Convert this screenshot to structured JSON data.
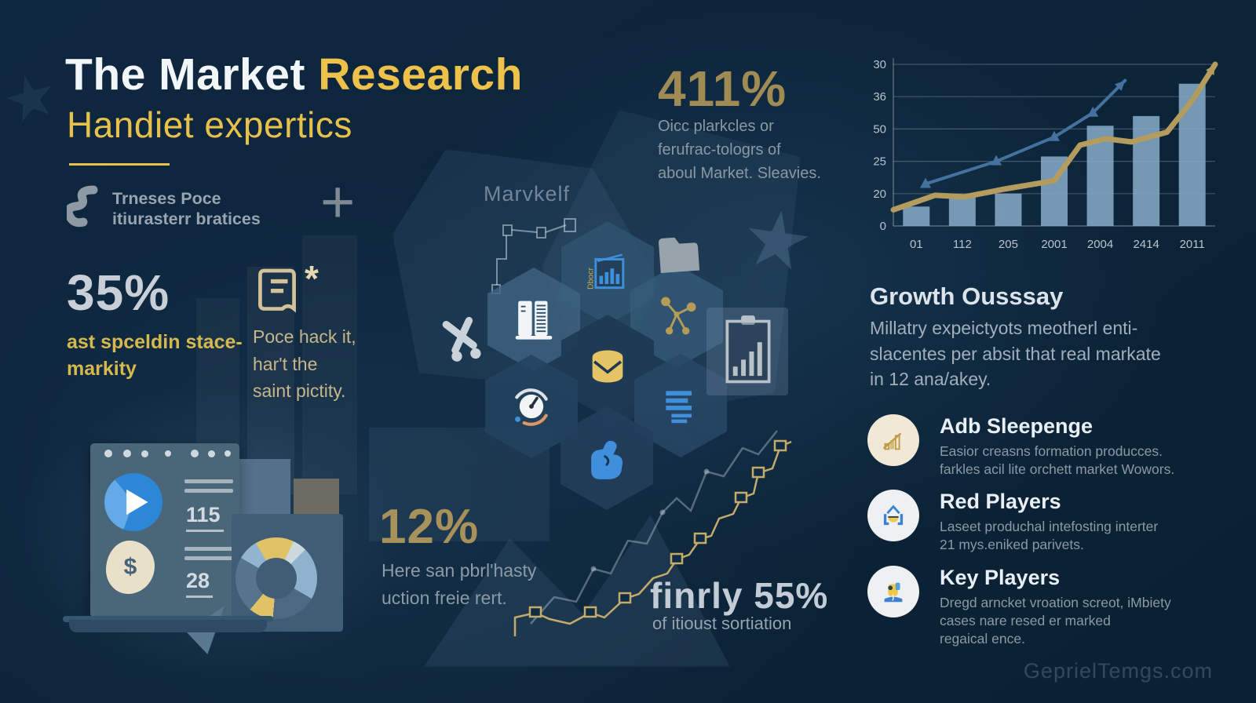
{
  "header": {
    "title_part1": "The Market",
    "title_part2": "Research",
    "subtitle": "Handiet expertics",
    "tagline": [
      "Trneses Poce",
      "itiurasterr bratices"
    ],
    "plus_glyph": "+"
  },
  "center": {
    "label": "Marvkelf",
    "doc_label": "Dbocr"
  },
  "stat_35": {
    "value": "35%",
    "label": [
      "ast spceldin stace-",
      "markity"
    ]
  },
  "doc_note": {
    "asterisk": "*",
    "lines": [
      "Poce hack it,",
      "har't the",
      "saint pictity."
    ]
  },
  "stat_411": {
    "value": "411%",
    "desc": [
      "Oicc plarkcles or",
      "ferufrac-tologrs of",
      "aboul Market. Sleavies."
    ]
  },
  "stat_12": {
    "value": "12%",
    "desc": [
      "Here san pbrl'hasty",
      "uction freie rert."
    ]
  },
  "stat_55": {
    "value": "finrly 55%",
    "desc": "of itioust sortiation"
  },
  "growth": {
    "heading": "Growth Ousssay",
    "body": [
      "Millatry expeictyots meotherl enti-",
      "slacentes per absit that real markate",
      "in 12 ana/akey."
    ]
  },
  "players": [
    {
      "icon": "growth-bars-icon",
      "title": "Adb Sleepenge",
      "desc": [
        "Easior creasns formation producces.",
        "farkles acil lite orchett market Wowors."
      ]
    },
    {
      "icon": "market-stall-icon",
      "title": "Red Players",
      "desc": [
        "Laseet produchal intefosting interter",
        "21 mys.eniked parivets."
      ]
    },
    {
      "icon": "analyst-icon",
      "title": "Key Players",
      "desc": [
        "Dregd arncket vroation screot, iMbiety",
        "cases nare resed er marked",
        "regaical ence."
      ]
    }
  ],
  "mockup": {
    "metric_a": "115",
    "metric_b": "28",
    "currency": "$"
  },
  "footer": {
    "watermark": "GeprielTemgs.com"
  },
  "colors": {
    "background": "#0c2438",
    "accent_yellow": "#eec14b",
    "gold": "#a8905a",
    "silver": "#c8cfd8",
    "body_gray": "#8e9ba7",
    "bright_blue": "#3b8de0",
    "bar_blue": "#84a8c5",
    "cream": "#f1e9d6"
  },
  "chart_data": {
    "type": "bar",
    "subtype": "bar-with-trend-lines",
    "title": "",
    "xlabel": "",
    "ylabel": "",
    "categories": [
      "01",
      "112",
      "205",
      "2001",
      "2004",
      "2414",
      "2011"
    ],
    "ytick_labels": [
      "30",
      "36",
      "50",
      "25",
      "20",
      "0"
    ],
    "ylim": [
      0,
      100
    ],
    "grid": true,
    "legend": null,
    "bars": {
      "name": "market-volume",
      "color": "#84a8c5",
      "values": [
        12,
        18,
        20,
        43,
        62,
        68,
        88
      ]
    },
    "lines": [
      {
        "name": "gold-trend",
        "color": "#b49b5e",
        "width": 7,
        "arrow": true,
        "marker": null,
        "points": [
          [
            0,
            10
          ],
          [
            0.13,
            19
          ],
          [
            0.22,
            18
          ],
          [
            0.35,
            23
          ],
          [
            0.5,
            28
          ],
          [
            0.58,
            50
          ],
          [
            0.66,
            54
          ],
          [
            0.74,
            52
          ],
          [
            0.85,
            58
          ],
          [
            0.93,
            78
          ],
          [
            1,
            100
          ]
        ]
      },
      {
        "name": "blue-trend",
        "color": "#44719d",
        "width": 4,
        "arrow": true,
        "marker": "triangle",
        "points": [
          [
            0.1,
            26
          ],
          [
            0.32,
            40
          ],
          [
            0.5,
            55
          ],
          [
            0.62,
            70
          ],
          [
            0.72,
            90
          ]
        ]
      }
    ]
  }
}
